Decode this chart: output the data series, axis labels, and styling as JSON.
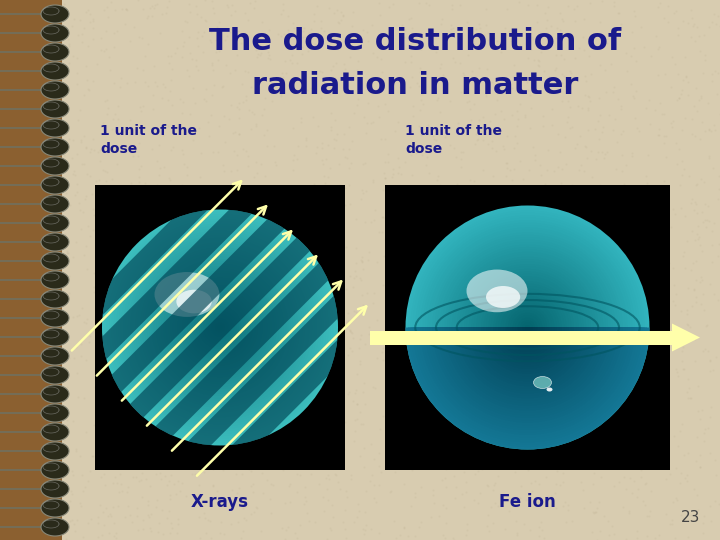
{
  "title_line1": "The dose distribution of",
  "title_line2": "radiation in matter",
  "title_color": "#1a1a8c",
  "title_fontsize": 22,
  "bg_color": "#d8ccb0",
  "left_label": "1 unit of the\ndose",
  "right_label": "1 unit of the\ndose",
  "left_caption": "X-rays",
  "right_caption": "Fe ion",
  "caption_color": "#1a1a8c",
  "label_color": "#1a1a8c",
  "page_number": "23",
  "arrow_color": "#ffffaa",
  "brown_edge_color": "#8b6030",
  "ring_color": "#3a3020"
}
